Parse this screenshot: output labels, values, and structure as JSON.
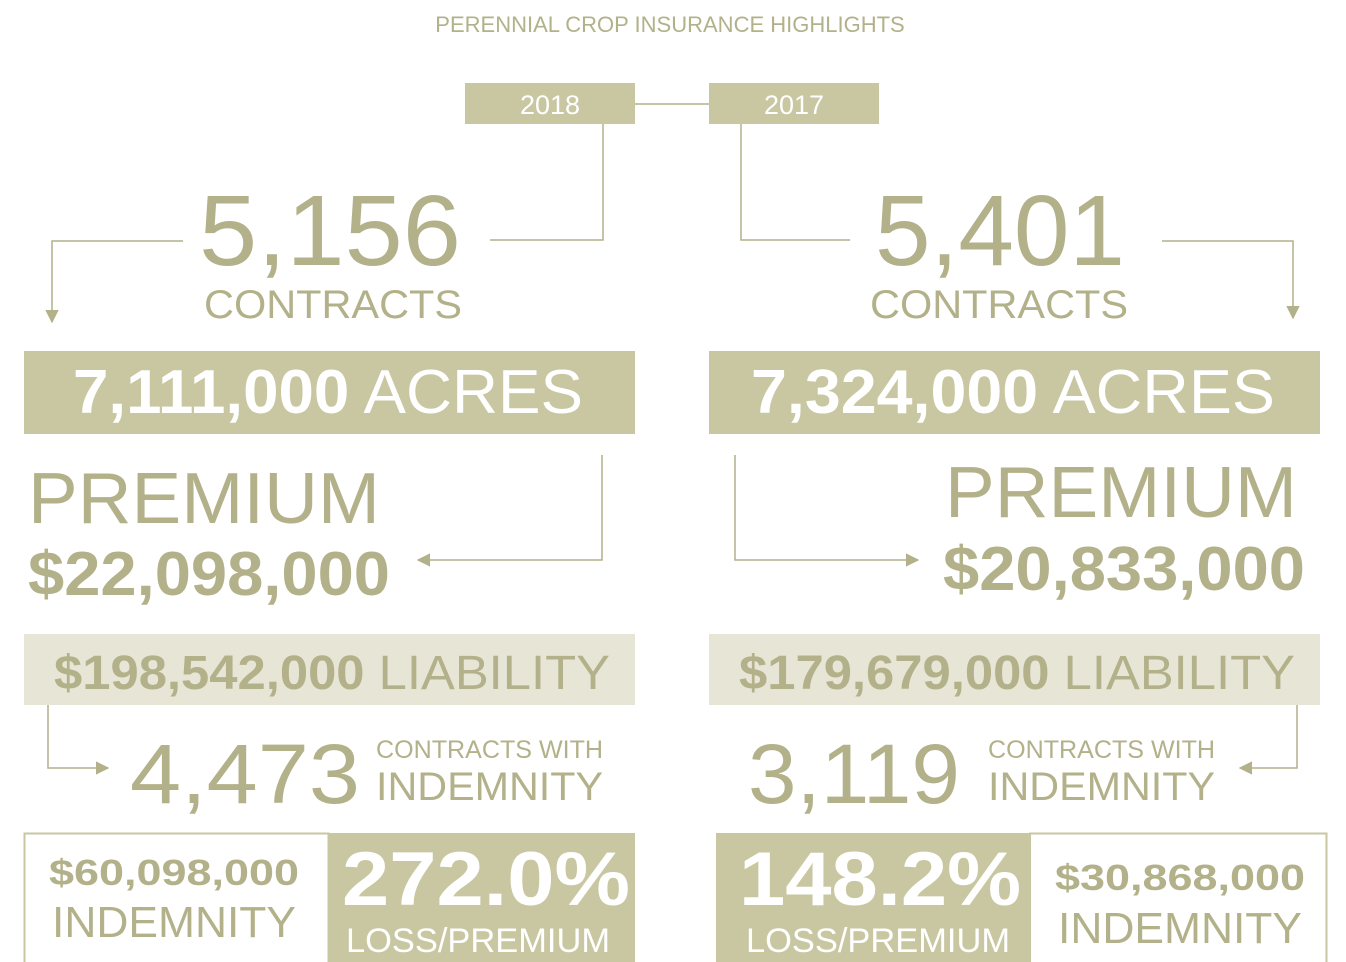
{
  "title": "PERENNIAL CROP INSURANCE HIGHLIGHTS",
  "years": [
    {
      "year": "2018",
      "contracts": "5,156",
      "contracts_label": "CONTRACTS",
      "acres": "7,111,000",
      "acres_label": "ACRES",
      "premium_label": "PREMIUM",
      "premium": "$22,098,000",
      "liability": "$198,542,000",
      "liability_label": "LIABILITY",
      "indemnity_contracts": "4,473",
      "indemnity_contracts_label_1": "CONTRACTS WITH",
      "indemnity_contracts_label_2": "INDEMNITY",
      "indemnity": "$60,098,000",
      "indemnity_label": "INDEMNITY",
      "loss_ratio": "272.0%",
      "loss_ratio_label": "LOSS/PREMIUM"
    },
    {
      "year": "2017",
      "contracts": "5,401",
      "contracts_label": "CONTRACTS",
      "acres": "7,324,000",
      "acres_label": "ACRES",
      "premium_label": "PREMIUM",
      "premium": "$20,833,000",
      "liability": "$179,679,000",
      "liability_label": "LIABILITY",
      "indemnity_contracts": "3,119",
      "indemnity_contracts_label_1": "CONTRACTS WITH",
      "indemnity_contracts_label_2": "INDEMNITY",
      "indemnity": "$30,868,000",
      "indemnity_label": "INDEMNITY",
      "loss_ratio": "148.2%",
      "loss_ratio_label": "LOSS/PREMIUM"
    }
  ]
}
